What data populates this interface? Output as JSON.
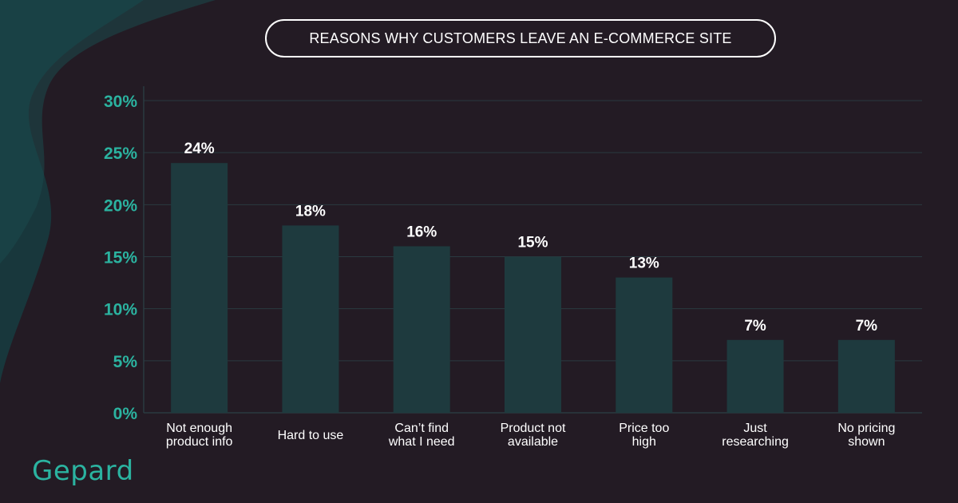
{
  "title": "REASONS WHY CUSTOMERS LEAVE AN E-COMMERCE SITE",
  "brand": "Gepard",
  "colors": {
    "background": "#231b24",
    "accent": "#2bb3a0",
    "bar": "#1e3a3e",
    "grid": "#2a3a40",
    "text": "#ffffff"
  },
  "chart_data": {
    "type": "bar",
    "categories": [
      [
        "Not enough",
        "product info"
      ],
      [
        "Hard to use"
      ],
      [
        "Can’t find",
        "what I need"
      ],
      [
        "Product not",
        "available"
      ],
      [
        "Price too",
        "high"
      ],
      [
        "Just",
        "researching"
      ],
      [
        "No pricing",
        "shown"
      ]
    ],
    "values": [
      24,
      18,
      16,
      15,
      13,
      7,
      7
    ],
    "value_labels": [
      "24%",
      "18%",
      "16%",
      "15%",
      "13%",
      "7%",
      "7%"
    ],
    "yticks": [
      0,
      5,
      10,
      15,
      20,
      25,
      30
    ],
    "ytick_labels": [
      "0%",
      "5%",
      "10%",
      "15%",
      "20%",
      "25%",
      "30%"
    ],
    "ylim": [
      0,
      30
    ],
    "grid": true,
    "xlabel": "",
    "ylabel": ""
  }
}
